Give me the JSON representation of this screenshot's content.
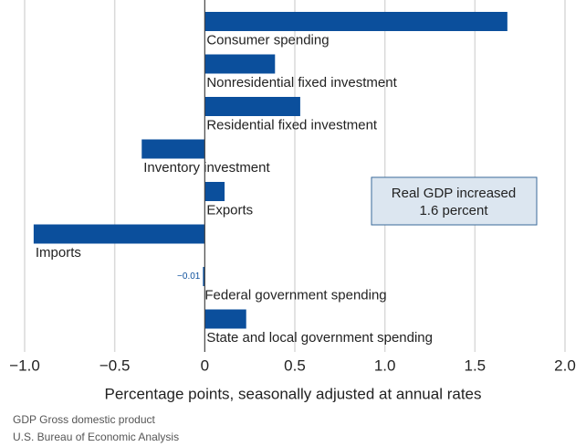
{
  "chart_data": {
    "type": "barh",
    "categories": [
      "Consumer spending",
      "Nonresidential fixed investment",
      "Residential fixed investment",
      "Inventory investment",
      "Exports",
      "Imports",
      "Federal government spending",
      "State and local government spending"
    ],
    "values": [
      1.68,
      0.39,
      0.53,
      -0.35,
      0.11,
      -0.95,
      -0.01,
      0.23
    ],
    "value_labels": [
      null,
      null,
      null,
      null,
      null,
      null,
      "−0.01",
      null
    ],
    "color": "#0b4f9c",
    "xlim": [
      -1.0,
      2.0
    ],
    "xticks": [
      {
        "value": -1.0,
        "label": "−1.0"
      },
      {
        "value": -0.5,
        "label": "−0.5"
      },
      0,
      0.5,
      {
        "value": 1.0,
        "label": "1.0"
      },
      1.5,
      {
        "value": 2.0,
        "label": "2.0"
      }
    ],
    "grid": true,
    "xlabel": "Percentage points, seasonally adjusted at annual rates",
    "annotation": [
      "Real GDP increased",
      "1.6 percent"
    ],
    "footnotes": [
      "GDP Gross domestic product",
      "U.S. Bureau of Economic Analysis"
    ]
  }
}
